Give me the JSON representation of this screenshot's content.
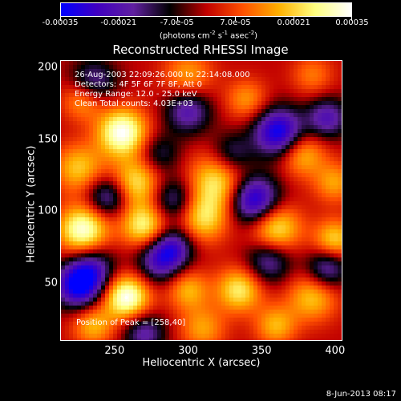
{
  "colorbar": {
    "ticks": [
      "-0.00035",
      "-0.00021",
      "-7.0e-05",
      "7.0e-05",
      "0.00021",
      "0.00035"
    ],
    "units_main": "(photons cm",
    "units_exp1": "-2",
    "units_mid": " s",
    "units_exp2": "-1",
    "units_mid2": " asec",
    "units_exp3": "-2",
    "units_end": ")"
  },
  "header": {
    "info_lines": [
      "26-Aug-2003 22:09:26.000 to 22:14:08.000",
      "Detectors: 4F 5F 6F 7F 8F, Att 0",
      "Energy Range: 12.0 - 25.0 keV",
      "Clean     Total counts: 4.03E+03"
    ],
    "peak_text": "Position of Peak = [258,40]"
  },
  "footer": {
    "timestamp": "8-Jun-2013 08:17"
  },
  "chart_data": {
    "type": "heatmap",
    "title": "Reconstructed RHESSI Image",
    "xlabel": "Heliocentric X (arcsec)",
    "ylabel": "Heliocentric Y (arcsec)",
    "xlim": [
      213,
      405
    ],
    "ylim": [
      10,
      205
    ],
    "x_ticks": [
      250,
      300,
      350,
      400
    ],
    "y_ticks": [
      50,
      100,
      150,
      200
    ],
    "color_range": [
      -0.00035,
      0.00035
    ],
    "colormap": [
      "#0000ff",
      "#4000c0",
      "#6020a0",
      "#000000",
      "#c00000",
      "#ff5000",
      "#ffb000",
      "#ffff80",
      "#ffffff"
    ],
    "peak": [
      258,
      40
    ],
    "blobs": [
      {
        "x": 255,
        "y": 155,
        "v": 0.00035,
        "s": 12
      },
      {
        "x": 228,
        "y": 178,
        "v": 0.00018,
        "s": 10
      },
      {
        "x": 300,
        "y": 195,
        "v": 0.00016,
        "s": 12
      },
      {
        "x": 340,
        "y": 178,
        "v": 0.00015,
        "s": 10
      },
      {
        "x": 385,
        "y": 195,
        "v": 0.00012,
        "s": 10
      },
      {
        "x": 225,
        "y": 130,
        "v": 0.0002,
        "s": 12
      },
      {
        "x": 265,
        "y": 120,
        "v": 0.00024,
        "s": 12
      },
      {
        "x": 320,
        "y": 120,
        "v": 0.00025,
        "s": 14
      },
      {
        "x": 378,
        "y": 140,
        "v": 0.0002,
        "s": 11
      },
      {
        "x": 400,
        "y": 120,
        "v": 0.00016,
        "s": 10
      },
      {
        "x": 228,
        "y": 87,
        "v": 0.00033,
        "s": 12
      },
      {
        "x": 270,
        "y": 90,
        "v": 0.00027,
        "s": 11
      },
      {
        "x": 310,
        "y": 95,
        "v": 0.00022,
        "s": 12
      },
      {
        "x": 360,
        "y": 88,
        "v": 0.00026,
        "s": 12
      },
      {
        "x": 400,
        "y": 80,
        "v": 0.00022,
        "s": 10
      },
      {
        "x": 258,
        "y": 40,
        "v": 0.00035,
        "s": 11
      },
      {
        "x": 300,
        "y": 45,
        "v": 0.00018,
        "s": 10
      },
      {
        "x": 335,
        "y": 45,
        "v": 0.00025,
        "s": 11
      },
      {
        "x": 385,
        "y": 40,
        "v": 0.0002,
        "s": 12
      },
      {
        "x": 235,
        "y": 20,
        "v": 0.00018,
        "s": 10
      },
      {
        "x": 310,
        "y": 18,
        "v": 0.00016,
        "s": 11
      },
      {
        "x": 360,
        "y": 20,
        "v": 0.00018,
        "s": 10
      },
      {
        "x": 362,
        "y": 155,
        "v": -0.00035,
        "s": 12
      },
      {
        "x": 300,
        "y": 170,
        "v": -0.00022,
        "s": 11
      },
      {
        "x": 235,
        "y": 190,
        "v": -0.0002,
        "s": 11
      },
      {
        "x": 395,
        "y": 165,
        "v": -0.00022,
        "s": 10
      },
      {
        "x": 245,
        "y": 110,
        "v": -0.00022,
        "s": 10
      },
      {
        "x": 290,
        "y": 108,
        "v": -0.0002,
        "s": 11
      },
      {
        "x": 345,
        "y": 108,
        "v": -0.00035,
        "s": 12
      },
      {
        "x": 235,
        "y": 60,
        "v": -0.0002,
        "s": 11
      },
      {
        "x": 225,
        "y": 48,
        "v": -0.00035,
        "s": 11
      },
      {
        "x": 280,
        "y": 65,
        "v": -0.00022,
        "s": 11
      },
      {
        "x": 290,
        "y": 75,
        "v": -0.00022,
        "s": 10
      },
      {
        "x": 355,
        "y": 65,
        "v": -0.0002,
        "s": 11
      },
      {
        "x": 395,
        "y": 60,
        "v": -0.00022,
        "s": 10
      },
      {
        "x": 270,
        "y": 15,
        "v": -0.0002,
        "s": 10
      },
      {
        "x": 330,
        "y": 140,
        "v": -0.00016,
        "s": 10
      },
      {
        "x": 280,
        "y": 140,
        "v": -0.00014,
        "s": 10
      }
    ]
  }
}
